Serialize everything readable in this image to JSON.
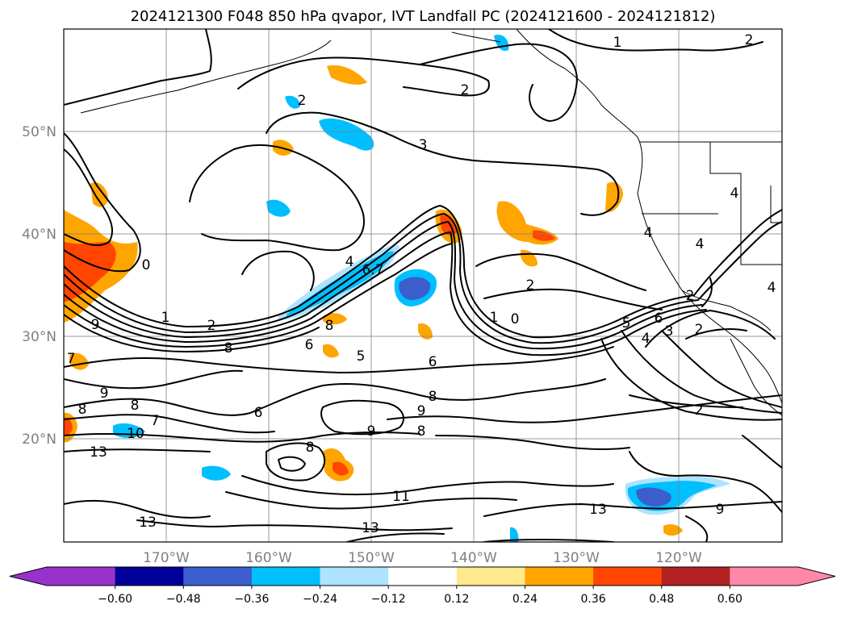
{
  "title": "2024121300 F048 850 hPa qvapor, IVT Landfall PC (2024121600 - 2024121812)",
  "map": {
    "lon_labels": [
      "170°W",
      "160°W",
      "150°W",
      "140°W",
      "130°W",
      "120°W"
    ],
    "lat_labels": [
      "50°N",
      "40°N",
      "30°N",
      "20°N"
    ],
    "contour_labels": [
      {
        "text": "1"
      },
      {
        "text": "2"
      },
      {
        "text": "2"
      },
      {
        "text": "2"
      },
      {
        "text": "3"
      },
      {
        "text": "0"
      },
      {
        "text": "1"
      },
      {
        "text": "2"
      },
      {
        "text": "4"
      },
      {
        "text": "6.7"
      },
      {
        "text": "9"
      },
      {
        "text": "8"
      },
      {
        "text": "2"
      },
      {
        "text": "1"
      },
      {
        "text": "0"
      },
      {
        "text": "4"
      },
      {
        "text": "4"
      },
      {
        "text": "4"
      },
      {
        "text": "6"
      },
      {
        "text": "5"
      },
      {
        "text": "4"
      },
      {
        "text": "3"
      },
      {
        "text": "2"
      },
      {
        "text": "8"
      },
      {
        "text": "6"
      },
      {
        "text": "5"
      },
      {
        "text": "6"
      },
      {
        "text": "8"
      },
      {
        "text": "9"
      },
      {
        "text": "8"
      },
      {
        "text": "6"
      },
      {
        "text": "9"
      },
      {
        "text": "8"
      },
      {
        "text": "8"
      },
      {
        "text": "9"
      },
      {
        "text": "13"
      },
      {
        "text": "10"
      },
      {
        "text": "7"
      },
      {
        "text": "11"
      },
      {
        "text": "13"
      },
      {
        "text": "13"
      },
      {
        "text": "13"
      },
      {
        "text": "9"
      },
      {
        "text": "2"
      },
      {
        "text": "7"
      },
      {
        "text": "8"
      },
      {
        "text": "4"
      },
      {
        "text": "2"
      }
    ]
  },
  "colorbar": {
    "colors": [
      "#9932CC",
      "#1E90FF",
      "#000099",
      "#3A5FCD",
      "#00BFFF",
      "#ADE3FF",
      "#FFFFFF",
      "#FFE98C",
      "#FFA500",
      "#FF4500",
      "#B22222",
      "#FF88AA"
    ],
    "tick_labels": [
      "−0.60",
      "−0.48",
      "−0.36",
      "−0.24",
      "−0.12",
      "0.12",
      "0.24",
      "0.36",
      "0.48",
      "0.60"
    ]
  }
}
